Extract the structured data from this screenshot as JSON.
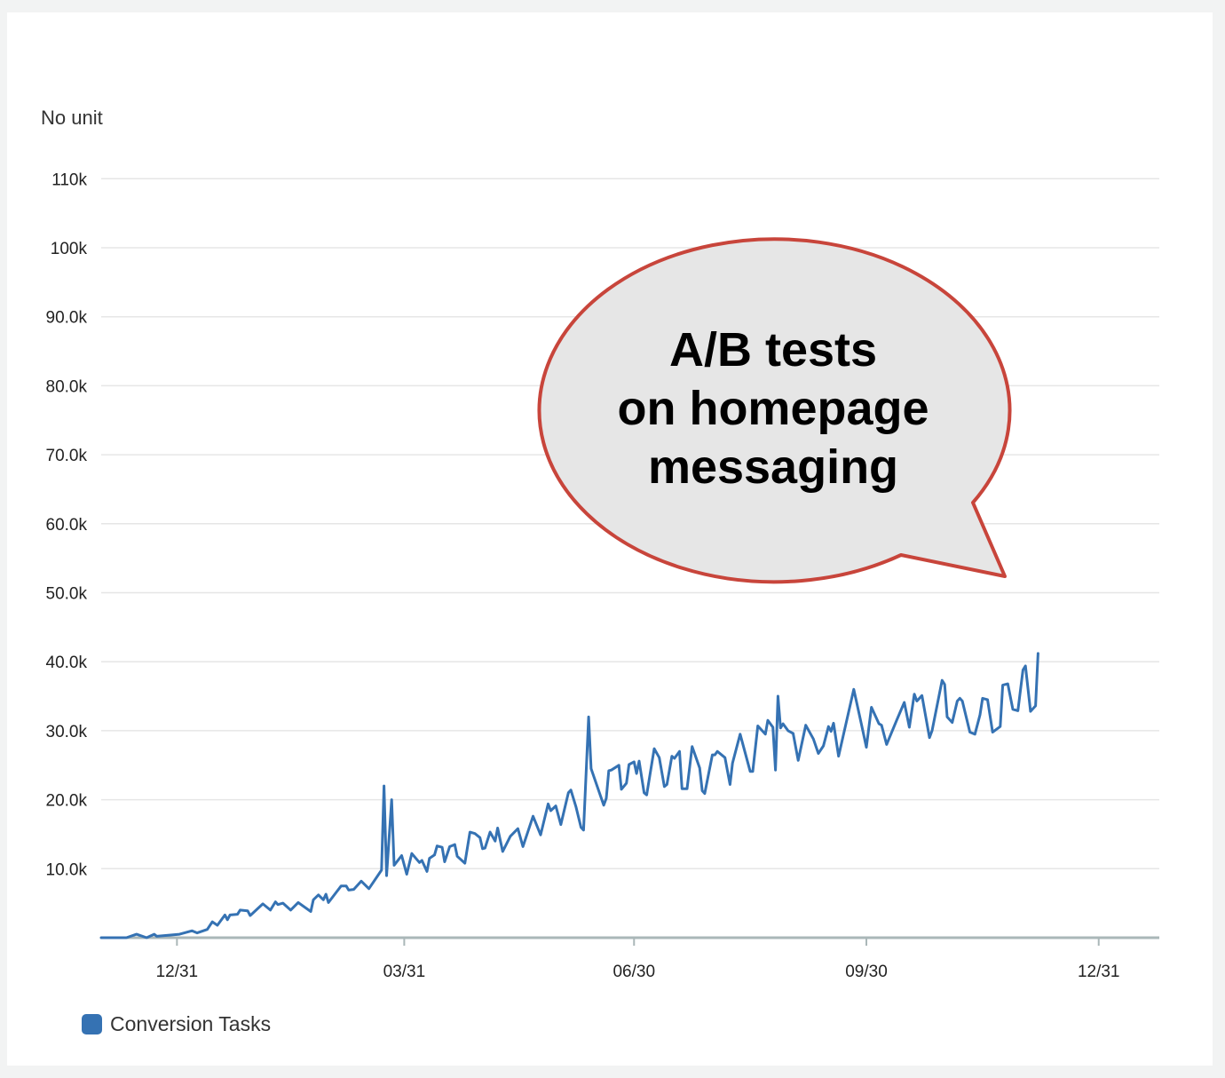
{
  "chart_data": {
    "type": "line",
    "ylabel": "No unit",
    "ylim": [
      0,
      114000
    ],
    "yticks": [
      {
        "value": 10000,
        "label": "10.0k"
      },
      {
        "value": 20000,
        "label": "20.0k"
      },
      {
        "value": 30000,
        "label": "30.0k"
      },
      {
        "value": 40000,
        "label": "40.0k"
      },
      {
        "value": 50000,
        "label": "50.0k"
      },
      {
        "value": 60000,
        "label": "60.0k"
      },
      {
        "value": 70000,
        "label": "70.0k"
      },
      {
        "value": 80000,
        "label": "80.0k"
      },
      {
        "value": 90000,
        "label": "90.0k"
      },
      {
        "value": 100000,
        "label": "100k"
      },
      {
        "value": 110000,
        "label": "110k"
      }
    ],
    "xlim": [
      "2021-12-01",
      "2023-01-24"
    ],
    "xticks": [
      {
        "date": "2021-12-31",
        "label": "12/31"
      },
      {
        "date": "2022-03-31",
        "label": "03/31"
      },
      {
        "date": "2022-06-30",
        "label": "06/30"
      },
      {
        "date": "2022-09-30",
        "label": "09/30"
      },
      {
        "date": "2022-12-31",
        "label": "12/31"
      }
    ],
    "grid": true,
    "legend_position": "bottom-left",
    "series": [
      {
        "name": "Conversion Tasks",
        "color": "#3572b3",
        "points": [
          [
            "2021-12-01",
            0
          ],
          [
            "2021-12-11",
            0
          ],
          [
            "2021-12-15",
            500
          ],
          [
            "2021-12-19",
            0
          ],
          [
            "2021-12-22",
            500
          ],
          [
            "2021-12-23",
            200
          ],
          [
            "2022-01-01",
            500
          ],
          [
            "2022-01-06",
            1000
          ],
          [
            "2022-01-08",
            700
          ],
          [
            "2022-01-12",
            1200
          ],
          [
            "2022-01-14",
            2300
          ],
          [
            "2022-01-16",
            1800
          ],
          [
            "2022-01-19",
            3300
          ],
          [
            "2022-01-20",
            2600
          ],
          [
            "2022-01-21",
            3300
          ],
          [
            "2022-01-24",
            3400
          ],
          [
            "2022-01-25",
            4000
          ],
          [
            "2022-01-28",
            3900
          ],
          [
            "2022-01-29",
            3200
          ],
          [
            "2022-02-03",
            4900
          ],
          [
            "2022-02-06",
            4000
          ],
          [
            "2022-02-08",
            5200
          ],
          [
            "2022-02-09",
            4800
          ],
          [
            "2022-02-11",
            5000
          ],
          [
            "2022-02-14",
            4000
          ],
          [
            "2022-02-17",
            5100
          ],
          [
            "2022-02-22",
            3800
          ],
          [
            "2022-02-23",
            5500
          ],
          [
            "2022-02-25",
            6200
          ],
          [
            "2022-02-27",
            5500
          ],
          [
            "2022-02-28",
            6300
          ],
          [
            "2022-03-01",
            5100
          ],
          [
            "2022-03-06",
            7500
          ],
          [
            "2022-03-08",
            7500
          ],
          [
            "2022-03-09",
            6900
          ],
          [
            "2022-03-11",
            7000
          ],
          [
            "2022-03-14",
            8200
          ],
          [
            "2022-03-17",
            7100
          ],
          [
            "2022-03-22",
            9800
          ],
          [
            "2022-03-23",
            22000
          ],
          [
            "2022-03-24",
            9000
          ],
          [
            "2022-03-26",
            20000
          ],
          [
            "2022-03-27",
            10500
          ],
          [
            "2022-03-30",
            11900
          ],
          [
            "2022-04-01",
            9200
          ],
          [
            "2022-04-03",
            12200
          ],
          [
            "2022-04-06",
            10900
          ],
          [
            "2022-04-07",
            11200
          ],
          [
            "2022-04-09",
            9600
          ],
          [
            "2022-04-10",
            11500
          ],
          [
            "2022-04-12",
            12000
          ],
          [
            "2022-04-13",
            13300
          ],
          [
            "2022-04-15",
            13100
          ],
          [
            "2022-04-16",
            11000
          ],
          [
            "2022-04-18",
            13200
          ],
          [
            "2022-04-20",
            13500
          ],
          [
            "2022-04-21",
            11800
          ],
          [
            "2022-04-24",
            10800
          ],
          [
            "2022-04-26",
            15300
          ],
          [
            "2022-04-28",
            15100
          ],
          [
            "2022-04-30",
            14500
          ],
          [
            "2022-05-01",
            12900
          ],
          [
            "2022-05-02",
            13000
          ],
          [
            "2022-05-04",
            15300
          ],
          [
            "2022-05-06",
            14000
          ],
          [
            "2022-05-07",
            15900
          ],
          [
            "2022-05-09",
            12500
          ],
          [
            "2022-05-12",
            14700
          ],
          [
            "2022-05-15",
            15800
          ],
          [
            "2022-05-17",
            13200
          ],
          [
            "2022-05-19",
            15400
          ],
          [
            "2022-05-21",
            17600
          ],
          [
            "2022-05-24",
            14900
          ],
          [
            "2022-05-27",
            19400
          ],
          [
            "2022-05-28",
            18400
          ],
          [
            "2022-05-30",
            19100
          ],
          [
            "2022-06-01",
            16400
          ],
          [
            "2022-06-04",
            21000
          ],
          [
            "2022-06-05",
            21400
          ],
          [
            "2022-06-07",
            19000
          ],
          [
            "2022-06-09",
            16000
          ],
          [
            "2022-06-10",
            15600
          ],
          [
            "2022-06-12",
            32000
          ],
          [
            "2022-06-13",
            24500
          ],
          [
            "2022-06-18",
            19200
          ],
          [
            "2022-06-19",
            20200
          ],
          [
            "2022-06-20",
            24200
          ],
          [
            "2022-06-21",
            24300
          ],
          [
            "2022-06-24",
            25000
          ],
          [
            "2022-06-25",
            21500
          ],
          [
            "2022-06-27",
            22400
          ],
          [
            "2022-06-28",
            25100
          ],
          [
            "2022-06-30",
            25500
          ],
          [
            "2022-07-01",
            23800
          ],
          [
            "2022-07-02",
            25600
          ],
          [
            "2022-07-04",
            21000
          ],
          [
            "2022-07-05",
            20700
          ],
          [
            "2022-07-08",
            27400
          ],
          [
            "2022-07-10",
            26100
          ],
          [
            "2022-07-12",
            21900
          ],
          [
            "2022-07-13",
            22200
          ],
          [
            "2022-07-15",
            26300
          ],
          [
            "2022-07-16",
            26000
          ],
          [
            "2022-07-18",
            27000
          ],
          [
            "2022-07-19",
            21600
          ],
          [
            "2022-07-21",
            21600
          ],
          [
            "2022-07-23",
            27700
          ],
          [
            "2022-07-26",
            24600
          ],
          [
            "2022-07-27",
            21300
          ],
          [
            "2022-07-28",
            20900
          ],
          [
            "2022-07-31",
            26500
          ],
          [
            "2022-08-01",
            26500
          ],
          [
            "2022-08-02",
            27000
          ],
          [
            "2022-08-05",
            26100
          ],
          [
            "2022-08-07",
            22200
          ],
          [
            "2022-08-08",
            25300
          ],
          [
            "2022-08-11",
            29500
          ],
          [
            "2022-08-15",
            24100
          ],
          [
            "2022-08-16",
            24100
          ],
          [
            "2022-08-18",
            30700
          ],
          [
            "2022-08-21",
            29500
          ],
          [
            "2022-08-22",
            31500
          ],
          [
            "2022-08-24",
            30500
          ],
          [
            "2022-08-25",
            24300
          ],
          [
            "2022-08-26",
            35000
          ],
          [
            "2022-08-27",
            30400
          ],
          [
            "2022-08-28",
            31000
          ],
          [
            "2022-08-30",
            30000
          ],
          [
            "2022-09-01",
            29600
          ],
          [
            "2022-09-03",
            25700
          ],
          [
            "2022-09-06",
            30800
          ],
          [
            "2022-09-09",
            28800
          ],
          [
            "2022-09-11",
            26700
          ],
          [
            "2022-09-13",
            27800
          ],
          [
            "2022-09-15",
            30600
          ],
          [
            "2022-09-16",
            29900
          ],
          [
            "2022-09-17",
            31100
          ],
          [
            "2022-09-19",
            26300
          ],
          [
            "2022-09-25",
            36000
          ],
          [
            "2022-09-28",
            31000
          ],
          [
            "2022-09-30",
            27600
          ],
          [
            "2022-10-02",
            33400
          ],
          [
            "2022-10-05",
            31000
          ],
          [
            "2022-10-06",
            30800
          ],
          [
            "2022-10-08",
            28000
          ],
          [
            "2022-10-12",
            31500
          ],
          [
            "2022-10-15",
            34100
          ],
          [
            "2022-10-17",
            30500
          ],
          [
            "2022-10-19",
            35300
          ],
          [
            "2022-10-20",
            34300
          ],
          [
            "2022-10-22",
            35100
          ],
          [
            "2022-10-25",
            29000
          ],
          [
            "2022-10-26",
            30000
          ],
          [
            "2022-10-30",
            37300
          ],
          [
            "2022-10-31",
            36700
          ],
          [
            "2022-11-01",
            32000
          ],
          [
            "2022-11-03",
            31200
          ],
          [
            "2022-11-05",
            34300
          ],
          [
            "2022-11-06",
            34700
          ],
          [
            "2022-11-07",
            34300
          ],
          [
            "2022-11-10",
            29800
          ],
          [
            "2022-11-12",
            29500
          ],
          [
            "2022-11-14",
            32300
          ],
          [
            "2022-11-15",
            34700
          ],
          [
            "2022-11-17",
            34500
          ],
          [
            "2022-11-19",
            29800
          ],
          [
            "2022-11-22",
            30600
          ],
          [
            "2022-11-23",
            36600
          ],
          [
            "2022-11-25",
            36800
          ],
          [
            "2022-11-27",
            33100
          ],
          [
            "2022-11-29",
            32900
          ],
          [
            "2022-12-01",
            38800
          ],
          [
            "2022-12-02",
            39400
          ],
          [
            "2022-12-04",
            32800
          ],
          [
            "2022-12-06",
            33600
          ],
          [
            "2022-12-07",
            41200
          ]
        ]
      }
    ],
    "annotation": {
      "text_lines": [
        "A/B tests",
        "on homepage",
        "messaging"
      ],
      "fill": "#e6e6e6",
      "stroke": "#c8453b"
    }
  }
}
